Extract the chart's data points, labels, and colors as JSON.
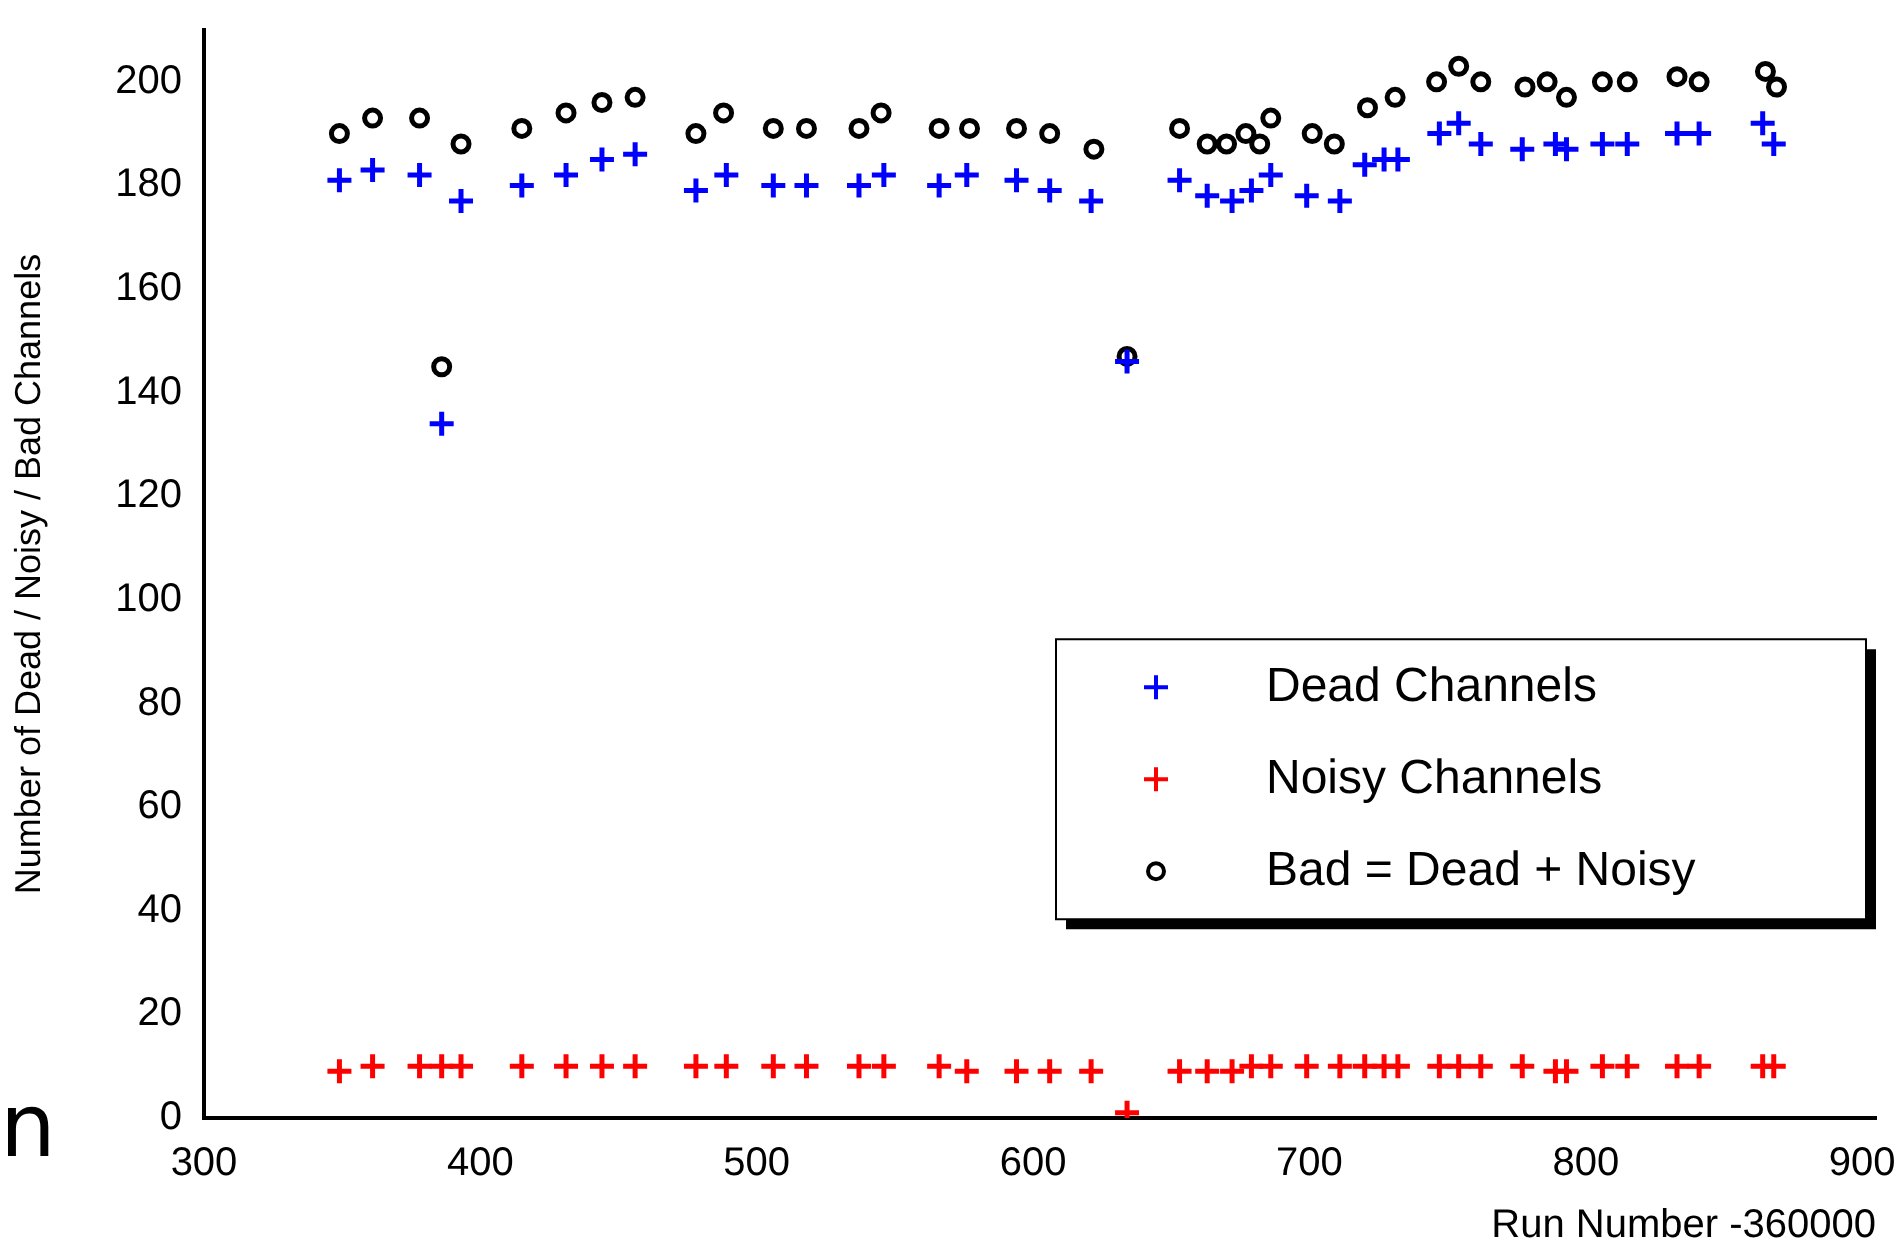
{
  "chart_data": {
    "type": "scatter",
    "xlabel": "Run Number -360000",
    "ylabel": "Number of Dead / Noisy / Bad Channels",
    "xlim": [
      300,
      905
    ],
    "ylim": [
      0,
      210
    ],
    "xticks": [
      300,
      400,
      500,
      600,
      700,
      800,
      900
    ],
    "yticks": [
      0,
      20,
      40,
      60,
      80,
      100,
      120,
      140,
      160,
      180,
      200
    ],
    "grid": false,
    "legend": "right",
    "annotations": [
      "n"
    ],
    "series": [
      {
        "name": "Dead Channels",
        "color": "#0000ff",
        "marker": "cross",
        "x": [
          349,
          361,
          378,
          386,
          393,
          415,
          431,
          444,
          456,
          478,
          489,
          506,
          518,
          537,
          546,
          566,
          576,
          594,
          606,
          621,
          634,
          653,
          663,
          672,
          679,
          686,
          699,
          711,
          720,
          727,
          732,
          747,
          754,
          762,
          777,
          789,
          793,
          806,
          815,
          833,
          841,
          864,
          868
        ],
        "values": [
          181,
          183,
          182,
          134,
          177,
          180,
          182,
          185,
          186,
          179,
          182,
          180,
          180,
          180,
          182,
          180,
          182,
          181,
          179,
          177,
          146,
          181,
          178,
          177,
          179,
          182,
          178,
          177,
          184,
          185,
          185,
          190,
          192,
          188,
          187,
          188,
          187,
          188,
          188,
          190,
          190,
          192,
          188
        ]
      },
      {
        "name": "Noisy Channels",
        "color": "#ff0000",
        "marker": "cross",
        "x": [
          349,
          361,
          378,
          386,
          393,
          415,
          431,
          444,
          456,
          478,
          489,
          506,
          518,
          537,
          546,
          566,
          576,
          594,
          606,
          621,
          634,
          653,
          663,
          672,
          679,
          686,
          699,
          711,
          720,
          727,
          732,
          747,
          754,
          762,
          777,
          789,
          793,
          806,
          815,
          833,
          841,
          864,
          868
        ],
        "values": [
          9,
          10,
          10,
          10,
          10,
          10,
          10,
          10,
          10,
          10,
          10,
          10,
          10,
          10,
          10,
          10,
          9,
          9,
          9,
          9,
          1,
          9,
          9,
          9,
          10,
          10,
          10,
          10,
          10,
          10,
          10,
          10,
          10,
          10,
          10,
          9,
          9,
          10,
          10,
          10,
          10,
          10,
          10
        ]
      },
      {
        "name": "Bad = Dead + Noisy",
        "color": "#000000",
        "marker": "circle",
        "x": [
          349,
          361,
          378,
          386,
          393,
          415,
          431,
          444,
          456,
          478,
          488,
          506,
          518,
          537,
          545,
          566,
          577,
          594,
          606,
          622,
          634,
          653,
          663,
          670,
          677,
          682,
          686,
          701,
          709,
          721,
          731,
          746,
          754,
          762,
          778,
          786,
          793,
          806,
          815,
          833,
          841,
          865,
          869
        ],
        "values": [
          190,
          193,
          193,
          145,
          188,
          191,
          194,
          196,
          197,
          190,
          194,
          191,
          191,
          191,
          194,
          191,
          191,
          191,
          190,
          187,
          147,
          191,
          188,
          188,
          190,
          188,
          193,
          190,
          188,
          195,
          197,
          200,
          203,
          200,
          199,
          200,
          197,
          200,
          200,
          201,
          200,
          202,
          199
        ]
      }
    ]
  }
}
